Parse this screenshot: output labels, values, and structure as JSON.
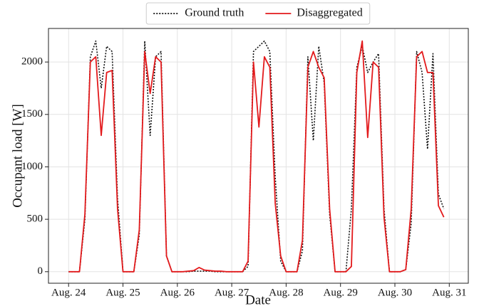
{
  "chart_data": {
    "type": "line",
    "xlabel": "Date",
    "ylabel": "Occupant load [W]",
    "x": [
      24,
      24.1,
      24.2,
      24.3,
      24.4,
      24.5,
      24.6,
      24.7,
      24.8,
      24.9,
      25,
      25.1,
      25.2,
      25.3,
      25.4,
      25.5,
      25.6,
      25.7,
      25.8,
      25.9,
      26,
      26.1,
      26.2,
      26.3,
      26.4,
      26.5,
      26.6,
      26.7,
      26.8,
      26.9,
      27,
      27.1,
      27.2,
      27.3,
      27.4,
      27.5,
      27.6,
      27.7,
      27.8,
      27.9,
      28,
      28.1,
      28.2,
      28.3,
      28.4,
      28.5,
      28.6,
      28.7,
      28.8,
      28.9,
      29,
      29.1,
      29.2,
      29.3,
      29.4,
      29.5,
      29.6,
      29.7,
      29.8,
      29.9,
      30,
      30.1,
      30.2,
      30.3,
      30.4,
      30.5,
      30.6,
      30.7,
      30.8,
      30.9
    ],
    "series": [
      {
        "name": "Ground truth",
        "color": "#111111",
        "linestyle": "dotted",
        "values": [
          0,
          0,
          0,
          500,
          2050,
          2200,
          1750,
          2150,
          2100,
          700,
          0,
          0,
          0,
          350,
          2200,
          1300,
          2050,
          2100,
          150,
          0,
          0,
          0,
          0,
          5,
          5,
          5,
          5,
          0,
          0,
          0,
          0,
          0,
          0,
          50,
          2100,
          2150,
          2200,
          2100,
          900,
          100,
          0,
          0,
          0,
          200,
          2050,
          1250,
          2150,
          1800,
          550,
          0,
          0,
          0,
          600,
          1950,
          2150,
          1900,
          2000,
          2080,
          600,
          0,
          0,
          0,
          20,
          460,
          2100,
          1900,
          1170,
          2080,
          740,
          600
        ]
      },
      {
        "name": "Disaggregated",
        "color": "#e31a1c",
        "linestyle": "solid",
        "values": [
          0,
          0,
          0,
          550,
          2000,
          2050,
          1300,
          1900,
          1920,
          600,
          0,
          0,
          0,
          400,
          2100,
          1700,
          2050,
          2000,
          150,
          0,
          0,
          0,
          5,
          10,
          40,
          15,
          10,
          5,
          5,
          0,
          0,
          0,
          0,
          100,
          2000,
          1380,
          2050,
          1950,
          650,
          150,
          0,
          0,
          0,
          300,
          1950,
          2100,
          1950,
          1850,
          600,
          0,
          0,
          0,
          50,
          1900,
          2200,
          1280,
          2000,
          1950,
          520,
          0,
          0,
          0,
          20,
          600,
          2050,
          2100,
          1900,
          1900,
          630,
          520
        ]
      }
    ],
    "xlim": [
      23.63,
      31.35
    ],
    "xticks": [
      {
        "value": 24,
        "label": "Aug. 24"
      },
      {
        "value": 25,
        "label": "Aug. 25"
      },
      {
        "value": 26,
        "label": "Aug. 26"
      },
      {
        "value": 27,
        "label": "Aug. 27"
      },
      {
        "value": 28,
        "label": "Aug. 28"
      },
      {
        "value": 29,
        "label": "Aug. 29"
      },
      {
        "value": 30,
        "label": "Aug. 30"
      },
      {
        "value": 31,
        "label": "Aug. 31"
      }
    ],
    "ylim": [
      -110,
      2320
    ],
    "yticks": [
      0,
      500,
      1000,
      1500,
      2000
    ],
    "grid": true,
    "legend": "top"
  }
}
